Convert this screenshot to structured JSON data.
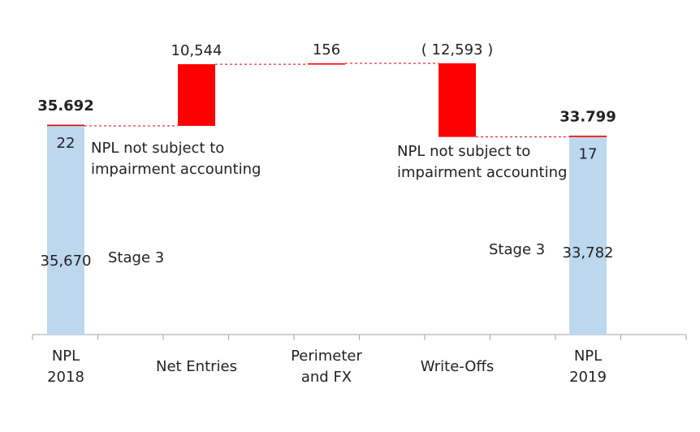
{
  "chart_data": {
    "type": "waterfall",
    "categories": [
      {
        "lines": [
          "NPL",
          "2018"
        ]
      },
      {
        "lines": [
          "Net Entries"
        ]
      },
      {
        "lines": [
          "Perimeter",
          "and FX"
        ]
      },
      {
        "lines": [
          "Write-Offs"
        ]
      },
      {
        "lines": [
          "NPL",
          "2019"
        ]
      }
    ],
    "bars": [
      {
        "kind": "total",
        "total": 35692,
        "total_label": "35.692",
        "segments": [
          {
            "name": "Stage 3",
            "value": 35670,
            "label": "35,670"
          },
          {
            "name": "NPL not subject to impairment accounting",
            "value": 22,
            "label": "22"
          }
        ]
      },
      {
        "kind": "delta",
        "value": 10544,
        "label": "10,544"
      },
      {
        "kind": "delta",
        "value": 156,
        "label": "156"
      },
      {
        "kind": "delta",
        "value": -12593,
        "label": "( 12,593 )"
      },
      {
        "kind": "total",
        "total": 33799,
        "total_label": "33.799",
        "segments": [
          {
            "name": "Stage 3",
            "value": 33782,
            "label": "33,782"
          },
          {
            "name": "NPL not subject to impairment accounting",
            "value": 17,
            "label": "17"
          }
        ]
      }
    ],
    "annotations": {
      "left_stage3": "Stage 3",
      "left_npl_line1": "NPL not subject to",
      "left_npl_line2": "impairment accounting",
      "right_stage3": "Stage 3",
      "right_npl_line1": "NPL not subject to",
      "right_npl_line2": "impairment accounting"
    },
    "colors": {
      "stage3": "#bdd7ee",
      "npl_other": "#e00000",
      "delta": "#ff0000",
      "connector": "#e00000",
      "axis": "#a6a6a6"
    },
    "grid": false,
    "legend": "none"
  }
}
